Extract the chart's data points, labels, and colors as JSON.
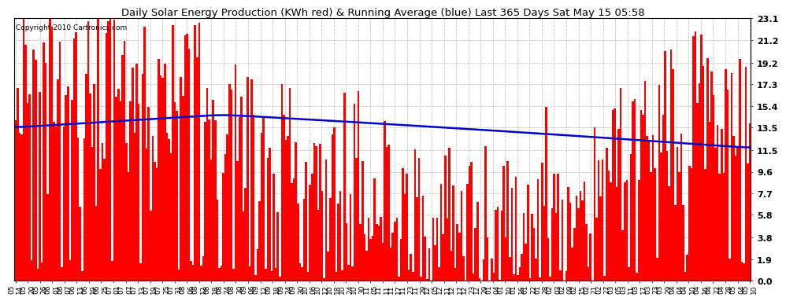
{
  "title": "Daily Solar Energy Production (KWh red) & Running Average (blue) Last 365 Days Sat May 15 05:58",
  "copyright": "Copyright 2010 Cartronics.com",
  "bar_color": "#ff0000",
  "line_color": "#0000cc",
  "background_color": "#ffffff",
  "plot_bg_color": "#ffffff",
  "grid_color": "#c8c8c8",
  "yticks": [
    0.0,
    1.9,
    3.8,
    5.8,
    7.7,
    9.6,
    11.5,
    13.5,
    15.4,
    17.3,
    19.2,
    21.2,
    23.1
  ],
  "ymin": 0.0,
  "ymax": 23.1,
  "x_date_labels": [
    "05-14",
    "05-20",
    "05-26",
    "06-01",
    "06-07",
    "06-13",
    "06-19",
    "06-25",
    "07-01",
    "07-07",
    "07-13",
    "07-19",
    "07-25",
    "07-31",
    "08-06",
    "08-12",
    "08-18",
    "08-24",
    "08-30",
    "09-06",
    "09-12",
    "09-18",
    "09-24",
    "09-30",
    "10-06",
    "10-12",
    "10-18",
    "10-24",
    "10-30",
    "11-05",
    "11-11",
    "11-17",
    "11-23",
    "11-29",
    "12-05",
    "12-11",
    "12-17",
    "12-23",
    "12-29",
    "01-04",
    "01-10",
    "01-16",
    "01-22",
    "01-28",
    "02-03",
    "02-09",
    "02-15",
    "02-21",
    "02-27",
    "03-05",
    "03-11",
    "03-17",
    "03-23",
    "03-29",
    "04-04",
    "04-10",
    "04-16",
    "04-22",
    "04-28",
    "05-04",
    "05-10"
  ]
}
